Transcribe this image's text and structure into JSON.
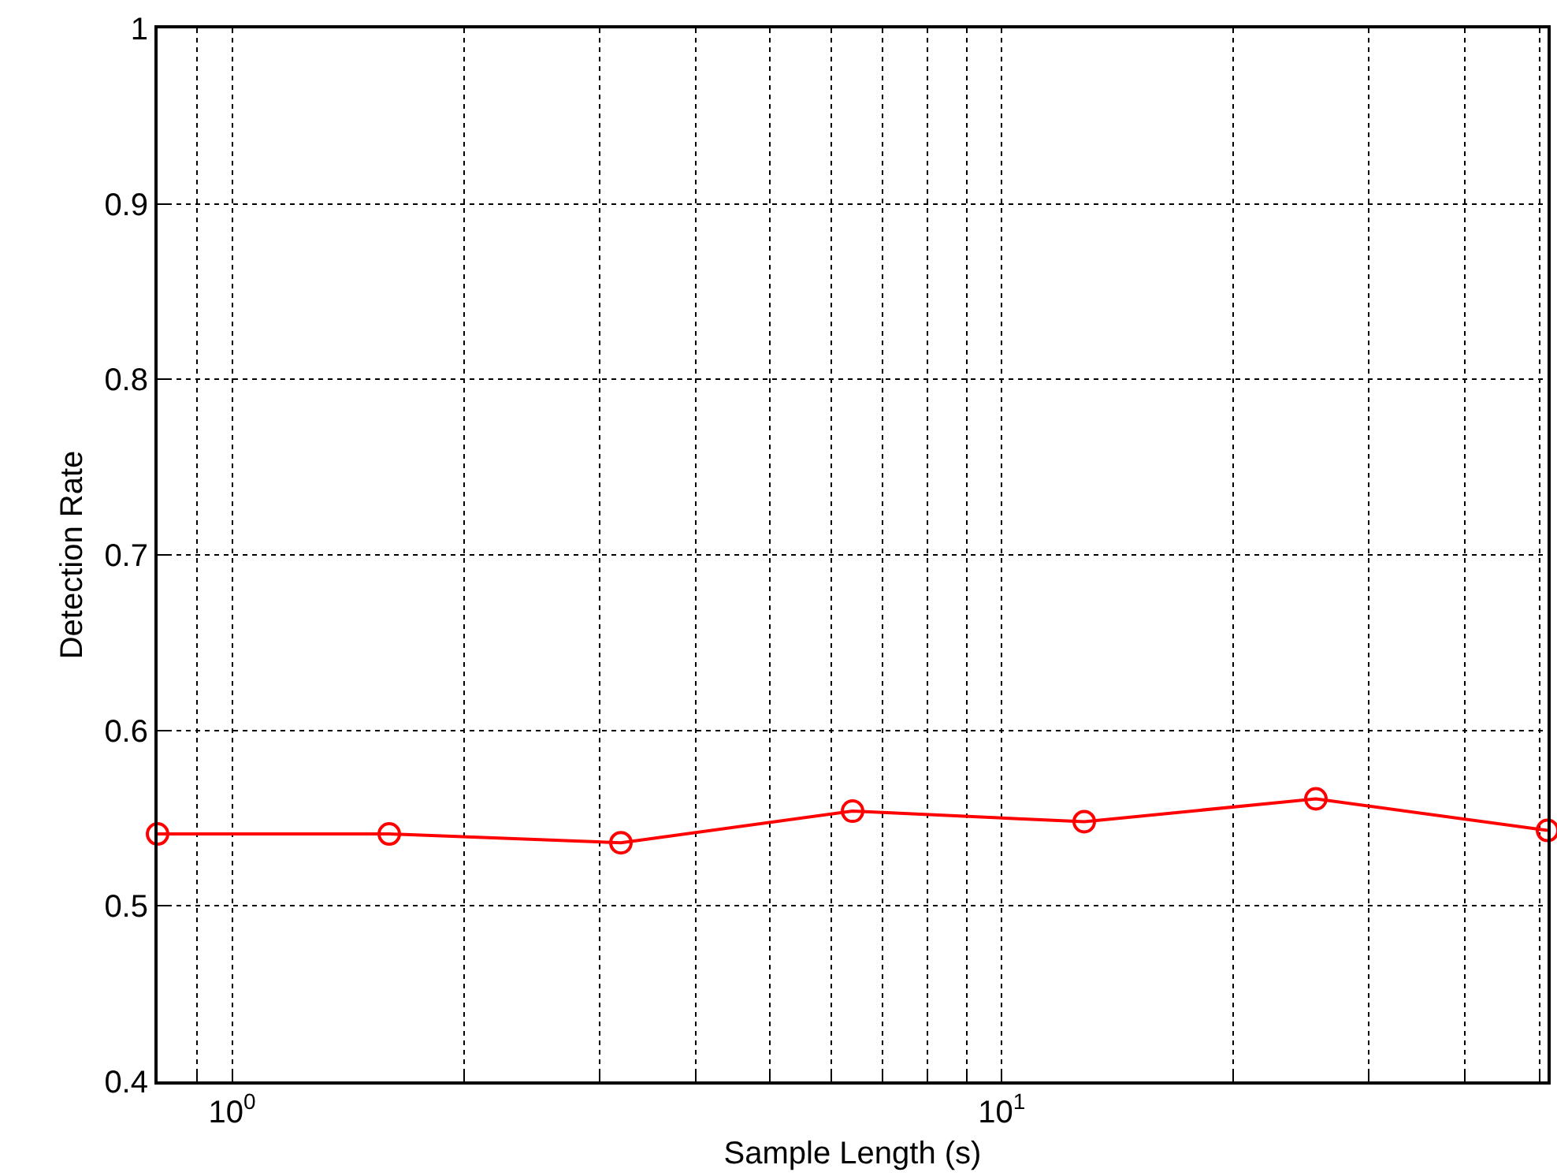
{
  "chart_data": {
    "type": "line",
    "xlabel": "Sample Length (s)",
    "ylabel": "Detection Rate",
    "x": [
      0.8,
      1.6,
      3.2,
      6.4,
      12.8,
      25.6,
      51.2
    ],
    "series": [
      {
        "color": "#ff0000",
        "values": [
          0.541,
          0.541,
          0.536,
          0.554,
          0.548,
          0.561,
          0.543
        ]
      }
    ],
    "log": "x",
    "xlim": [
      0.8,
      51.2
    ],
    "ylim": [
      0.4,
      1
    ],
    "xticks": [
      {
        "value": 0.9,
        "label": null
      },
      {
        "value": 1,
        "label": "10$^{0}$"
      },
      {
        "value": 2,
        "label": null
      },
      {
        "value": 3,
        "label": null
      },
      {
        "value": 4,
        "label": null
      },
      {
        "value": 5,
        "label": null
      },
      {
        "value": 6,
        "label": null
      },
      {
        "value": 7,
        "label": null
      },
      {
        "value": 8,
        "label": null
      },
      {
        "value": 9,
        "label": null
      },
      {
        "value": 10,
        "label": "10$^{1}$"
      },
      {
        "value": 20,
        "label": null
      },
      {
        "value": 30,
        "label": null
      },
      {
        "value": 40,
        "label": null
      },
      {
        "value": 50,
        "label": null
      }
    ],
    "yticks": [
      0.4,
      0.5,
      0.6,
      0.7,
      0.8,
      0.9,
      1
    ],
    "grid": true,
    "marker": "circle",
    "line_style": "solid"
  }
}
